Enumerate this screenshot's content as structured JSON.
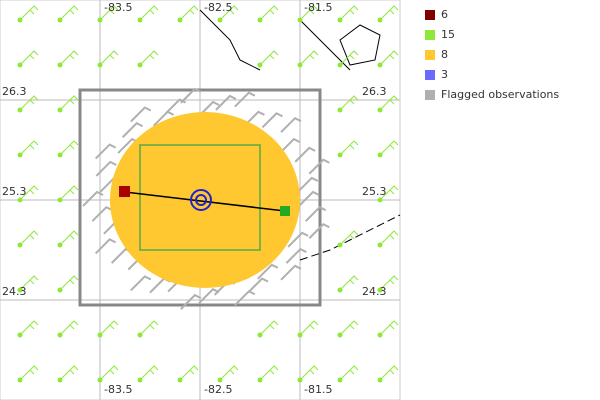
{
  "map": {
    "lon_labels": [
      "-83.5",
      "-82.5",
      "-81.5"
    ],
    "lat_labels": [
      "26.3",
      "25.3",
      "24.3"
    ],
    "legend": [
      {
        "label": "6",
        "color": "#800000"
      },
      {
        "label": "15",
        "color": "#8ee83a"
      },
      {
        "label": "8",
        "color": "#ffc830"
      },
      {
        "label": "3",
        "color": "#6a6aff"
      },
      {
        "label": "Flagged observations",
        "color": "#b0b0b0"
      }
    ]
  }
}
